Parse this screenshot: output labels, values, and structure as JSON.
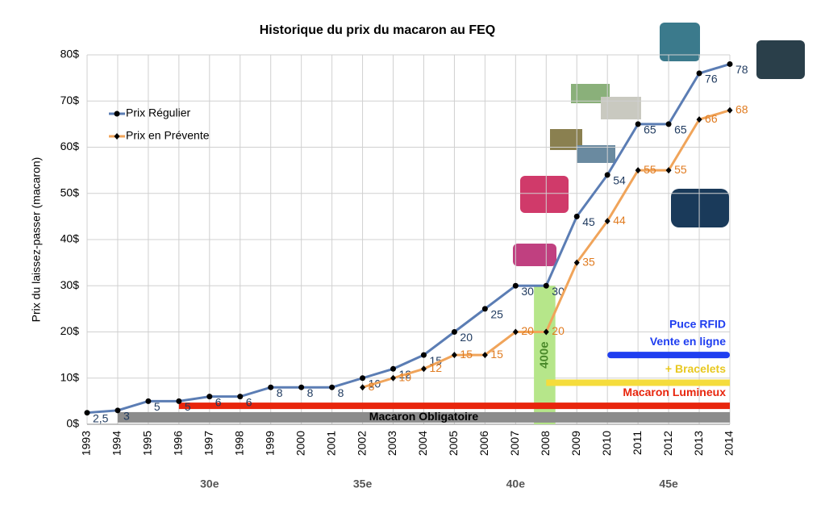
{
  "chart_data": {
    "type": "line",
    "title": "Historique du prix du macaron au FEQ",
    "y_label": "Prix du laissez-passer (macaron)",
    "x": [
      1993,
      1994,
      1995,
      1996,
      1997,
      1998,
      1999,
      2000,
      2001,
      2002,
      2003,
      2004,
      2005,
      2006,
      2007,
      2008,
      2009,
      2010,
      2011,
      2012,
      2013,
      2014
    ],
    "xlim": [
      1993,
      2014
    ],
    "xticks": [
      1993,
      1994,
      1995,
      1996,
      1997,
      1998,
      1999,
      2000,
      2001,
      2002,
      2003,
      2004,
      2005,
      2006,
      2007,
      2008,
      2009,
      2010,
      2011,
      2012,
      2013,
      2014
    ],
    "ylim": [
      0,
      80
    ],
    "yticks": [
      {
        "value": 0,
        "label": "0$"
      },
      {
        "value": 10,
        "label": "10$"
      },
      {
        "value": 20,
        "label": "20$"
      },
      {
        "value": 30,
        "label": "30$"
      },
      {
        "value": 40,
        "label": "40$"
      },
      {
        "value": 50,
        "label": "50$"
      },
      {
        "value": 60,
        "label": "60$"
      },
      {
        "value": 70,
        "label": "70$"
      },
      {
        "value": 80,
        "label": "80$"
      }
    ],
    "grid": true,
    "series": [
      {
        "name": "Prix Régulier",
        "color": "#5b7db4",
        "label_color": "#1f3a5f",
        "marker": "circle",
        "values": [
          2.5,
          3,
          5,
          5,
          6,
          6,
          8,
          8,
          8,
          10,
          12,
          15,
          20,
          25,
          30,
          30,
          45,
          54,
          65,
          65,
          76,
          78
        ],
        "value_labels": [
          "2,5",
          "3",
          "5",
          "5",
          "6",
          "6",
          "8",
          "8",
          "8",
          "10",
          "12",
          "15",
          "20",
          "25",
          "30",
          "30",
          "45",
          "54",
          "65",
          "65",
          "76",
          "78"
        ]
      },
      {
        "name": "Prix en Prévente",
        "color": "#f0a45a",
        "label_color": "#e07b20",
        "marker": "diamond",
        "values": [
          null,
          null,
          null,
          null,
          null,
          null,
          null,
          null,
          null,
          8,
          10,
          12,
          15,
          15,
          20,
          20,
          35,
          44,
          55,
          55,
          66,
          68
        ]
      }
    ],
    "spans": [
      {
        "label": "Macaron Obligatoire",
        "start": 1994,
        "end": 2014,
        "color": "#8c8c8c",
        "text_color": "#000"
      },
      {
        "label": "Macaron Lumineux",
        "start": 1996,
        "end": 2014,
        "color": "#e8250c",
        "text_color": "#e8250c"
      },
      {
        "label": "+ Bracelets",
        "start": 2008,
        "end": 2014,
        "color": "#f5dc3c",
        "text_color": "#e8c820"
      },
      {
        "label": "Vente en ligne",
        "start": 2010,
        "end": 2014,
        "color": "#1f3ef0",
        "text_color": "#1f3ef0"
      }
    ],
    "note": "Puce RFID",
    "highlight": {
      "label": "400e",
      "x": [
        2007.6,
        2008.3
      ],
      "top": 30,
      "color": "#b6e68a"
    },
    "editions": [
      {
        "label": "30e",
        "x": 1997
      },
      {
        "label": "35e",
        "x": 2002
      },
      {
        "label": "40e",
        "x": 2007
      },
      {
        "label": "45e",
        "x": 2012
      }
    ]
  }
}
